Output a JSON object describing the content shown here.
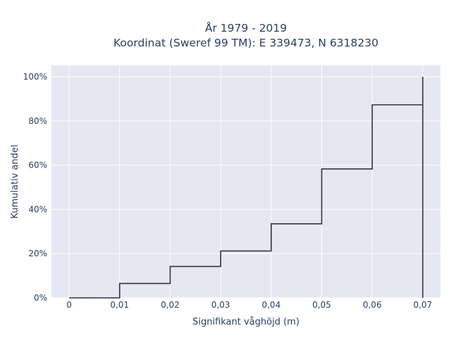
{
  "chart_data": {
    "type": "line",
    "line_shape": "step",
    "title_lines": [
      "År 1979 - 2019",
      "Koordinat (Sweref 99 TM): E 339473, N 6318230"
    ],
    "xlabel": "Signifikant våghöjd (m)",
    "ylabel": "Kumulativ andel",
    "x_ticks": [
      0,
      0.01,
      0.02,
      0.03,
      0.04,
      0.05,
      0.06,
      0.07
    ],
    "x_tick_labels": [
      "0",
      "0,01",
      "0,02",
      "0,03",
      "0,04",
      "0,05",
      "0,06",
      "0,07"
    ],
    "y_ticks": [
      0,
      0.2,
      0.4,
      0.6,
      0.8,
      1.0
    ],
    "y_tick_labels": [
      "0%",
      "20%",
      "40%",
      "60%",
      "80%",
      "100%"
    ],
    "xlim": [
      -0.0035,
      0.0735
    ],
    "ylim": [
      0,
      1.0
    ],
    "grid": true,
    "colors": {
      "background": "#e5e8f2",
      "grid": "#ffffff",
      "line": "#2f3640"
    },
    "series": [
      {
        "x": [
          0,
          0.01,
          0.01,
          0.02,
          0.02,
          0.03,
          0.03,
          0.04,
          0.04,
          0.05,
          0.05,
          0.06,
          0.06,
          0.07,
          0.07,
          0.07
        ],
        "y": [
          0,
          0,
          0.065,
          0.065,
          0.142,
          0.142,
          0.212,
          0.212,
          0.335,
          0.335,
          0.583,
          0.583,
          0.873,
          0.873,
          1.0,
          0
        ]
      }
    ]
  }
}
